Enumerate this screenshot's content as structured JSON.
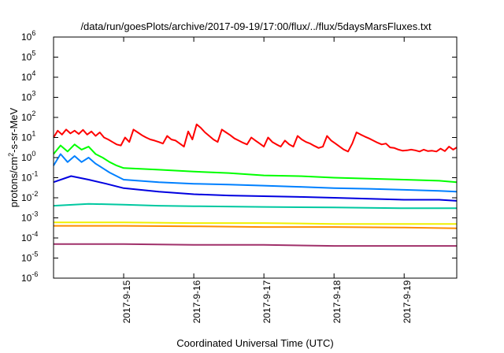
{
  "chart_data": {
    "type": "line",
    "title": "/data/run/goesPlots/archive/2017-09-19/17:00/flux/../flux/5daysMarsFluxes.txt",
    "xlabel": "Coordinated Universal Time (UTC)",
    "ylabel": "protons/cm2-s-sr-MeV",
    "ylabel_main": "protons/cm",
    "ylabel_sup": "2",
    "ylabel_rest": "-s-sr-MeV",
    "yscale": "log",
    "ylim": [
      1e-06,
      1000000.0
    ],
    "xlim": [
      "2017-09-14 00:00",
      "2017-09-19 18:00"
    ],
    "x_ticks": [
      "2017-9-15",
      "2017-9-16",
      "2017-9-17",
      "2017-9-18",
      "2017-9-19"
    ],
    "y_ticks": [
      {
        "base": "10",
        "exp": "-6"
      },
      {
        "base": "10",
        "exp": "-5"
      },
      {
        "base": "10",
        "exp": "-4"
      },
      {
        "base": "10",
        "exp": "-3"
      },
      {
        "base": "10",
        "exp": "-2"
      },
      {
        "base": "10",
        "exp": "-1"
      },
      {
        "base": "10",
        "exp": "0"
      },
      {
        "base": "10",
        "exp": "1"
      },
      {
        "base": "10",
        "exp": "2"
      },
      {
        "base": "10",
        "exp": "3"
      },
      {
        "base": "10",
        "exp": "4"
      },
      {
        "base": "10",
        "exp": "5"
      },
      {
        "base": "10",
        "exp": "6"
      }
    ],
    "grid": false,
    "legend": "none",
    "series": [
      {
        "color": "#ff0000",
        "x": [
          "2017-09-14 00:00",
          "2017-09-14 01:26",
          "2017-09-14 02:53",
          "2017-09-14 04:19",
          "2017-09-14 05:46",
          "2017-09-14 07:12",
          "2017-09-14 08:38",
          "2017-09-14 10:05",
          "2017-09-14 11:31",
          "2017-09-14 12:58",
          "2017-09-14 14:24",
          "2017-09-14 15:50",
          "2017-09-14 17:17",
          "2017-09-14 18:43",
          "2017-09-14 20:10",
          "2017-09-14 21:36",
          "2017-09-14 23:02",
          "2017-09-15 00:29",
          "2017-09-15 01:55",
          "2017-09-15 03:22",
          "2017-09-15 04:48",
          "2017-09-15 06:14",
          "2017-09-15 07:41",
          "2017-09-15 09:07",
          "2017-09-15 10:34",
          "2017-09-15 12:00",
          "2017-09-15 13:26",
          "2017-09-15 14:53",
          "2017-09-15 16:19",
          "2017-09-15 17:46",
          "2017-09-15 19:12",
          "2017-09-15 20:38",
          "2017-09-15 22:05",
          "2017-09-15 23:31",
          "2017-09-16 00:58",
          "2017-09-16 02:24",
          "2017-09-16 03:50",
          "2017-09-16 05:17",
          "2017-09-16 06:43",
          "2017-09-16 08:10",
          "2017-09-16 09:36",
          "2017-09-16 11:02",
          "2017-09-16 12:29",
          "2017-09-16 13:55",
          "2017-09-16 15:22",
          "2017-09-16 16:48",
          "2017-09-16 18:14",
          "2017-09-16 19:41",
          "2017-09-16 21:07",
          "2017-09-16 22:34",
          "2017-09-17 00:00",
          "2017-09-17 01:26",
          "2017-09-17 02:53",
          "2017-09-17 04:19",
          "2017-09-17 05:46",
          "2017-09-17 07:12",
          "2017-09-17 08:38",
          "2017-09-17 10:05",
          "2017-09-17 11:31",
          "2017-09-17 12:58",
          "2017-09-17 14:24",
          "2017-09-17 15:50",
          "2017-09-17 17:17",
          "2017-09-17 18:43",
          "2017-09-17 20:10",
          "2017-09-17 21:36",
          "2017-09-17 23:02",
          "2017-09-18 00:29",
          "2017-09-18 01:55",
          "2017-09-18 03:22",
          "2017-09-18 04:48",
          "2017-09-18 06:14",
          "2017-09-18 07:41",
          "2017-09-18 09:07",
          "2017-09-18 10:34",
          "2017-09-18 12:00",
          "2017-09-18 13:26",
          "2017-09-18 14:53",
          "2017-09-18 16:19",
          "2017-09-18 17:46",
          "2017-09-18 19:12",
          "2017-09-18 20:38",
          "2017-09-18 22:05",
          "2017-09-18 23:31",
          "2017-09-19 00:58",
          "2017-09-19 02:24",
          "2017-09-19 03:50",
          "2017-09-19 05:17",
          "2017-09-19 06:43",
          "2017-09-19 08:10",
          "2017-09-19 09:36",
          "2017-09-19 11:02",
          "2017-09-19 12:29",
          "2017-09-19 13:55",
          "2017-09-19 15:22",
          "2017-09-19 16:48",
          "2017-09-19 18:00"
        ],
        "y": [
          10,
          22,
          14,
          25,
          16,
          22,
          15,
          24,
          14,
          20,
          12,
          18,
          10,
          8,
          6,
          4.5,
          4,
          10,
          6,
          25,
          18,
          13,
          10,
          8,
          7,
          6,
          5,
          12,
          8,
          7,
          5,
          3.5,
          20,
          8,
          45,
          30,
          18,
          12,
          8,
          6,
          25,
          18,
          13,
          9,
          7,
          5.5,
          4.5,
          10,
          7,
          5,
          3.5,
          10,
          6,
          4.5,
          3.5,
          7,
          4.5,
          3.5,
          12,
          8,
          6,
          5,
          3.8,
          3,
          3.5,
          12,
          7,
          5,
          3.5,
          2.5,
          2,
          5,
          18,
          14,
          11,
          9,
          7,
          5.5,
          4.5,
          5,
          3.2,
          3,
          2.5,
          2.2,
          2.3,
          2.5,
          2.3,
          2,
          2.5,
          2.1,
          2.2,
          2,
          2.8,
          2.1,
          3.5,
          2.5,
          3.2
        ]
      },
      {
        "color": "#00ff00",
        "x": [
          "2017-09-14 00:00",
          "2017-09-14 02:24",
          "2017-09-14 04:48",
          "2017-09-14 07:12",
          "2017-09-14 09:36",
          "2017-09-14 12:00",
          "2017-09-14 14:24",
          "2017-09-14 16:48",
          "2017-09-14 19:12",
          "2017-09-14 21:36",
          "2017-09-15 00:00",
          "2017-09-15 12:00",
          "2017-09-16 00:00",
          "2017-09-16 12:00",
          "2017-09-17 00:00",
          "2017-09-17 12:00",
          "2017-09-18 00:00",
          "2017-09-18 12:00",
          "2017-09-19 00:00",
          "2017-09-19 12:00",
          "2017-09-19 18:00"
        ],
        "y": [
          1.5,
          4,
          2,
          4.5,
          2.5,
          3.5,
          1.5,
          1,
          0.6,
          0.4,
          0.3,
          0.25,
          0.2,
          0.17,
          0.13,
          0.12,
          0.1,
          0.09,
          0.08,
          0.07,
          0.06
        ]
      },
      {
        "color": "#0080ff",
        "x": [
          "2017-09-14 00:00",
          "2017-09-14 02:24",
          "2017-09-14 04:48",
          "2017-09-14 07:12",
          "2017-09-14 09:36",
          "2017-09-14 12:00",
          "2017-09-14 14:24",
          "2017-09-14 16:48",
          "2017-09-14 19:12",
          "2017-09-14 21:36",
          "2017-09-15 00:00",
          "2017-09-15 12:00",
          "2017-09-16 00:00",
          "2017-09-16 12:00",
          "2017-09-17 00:00",
          "2017-09-17 12:00",
          "2017-09-18 00:00",
          "2017-09-18 12:00",
          "2017-09-19 00:00",
          "2017-09-19 12:00",
          "2017-09-19 18:00"
        ],
        "y": [
          0.4,
          1.5,
          0.6,
          1.2,
          0.6,
          1,
          0.5,
          0.3,
          0.18,
          0.12,
          0.08,
          0.06,
          0.05,
          0.045,
          0.04,
          0.035,
          0.03,
          0.028,
          0.025,
          0.022,
          0.02
        ]
      },
      {
        "color": "#0000e0",
        "x": [
          "2017-09-14 00:00",
          "2017-09-14 06:00",
          "2017-09-14 12:00",
          "2017-09-14 18:00",
          "2017-09-15 00:00",
          "2017-09-15 12:00",
          "2017-09-16 00:00",
          "2017-09-16 12:00",
          "2017-09-17 00:00",
          "2017-09-17 12:00",
          "2017-09-18 00:00",
          "2017-09-18 12:00",
          "2017-09-19 00:00",
          "2017-09-19 12:00",
          "2017-09-19 18:00"
        ],
        "y": [
          0.06,
          0.12,
          0.08,
          0.05,
          0.03,
          0.02,
          0.015,
          0.013,
          0.012,
          0.011,
          0.01,
          0.009,
          0.008,
          0.008,
          0.007
        ]
      },
      {
        "color": "#00c8a0",
        "x": [
          "2017-09-14 00:00",
          "2017-09-14 12:00",
          "2017-09-15 00:00",
          "2017-09-15 12:00",
          "2017-09-16 00:00",
          "2017-09-17 00:00",
          "2017-09-18 00:00",
          "2017-09-19 00:00",
          "2017-09-19 18:00"
        ],
        "y": [
          0.004,
          0.005,
          0.0045,
          0.004,
          0.0038,
          0.0035,
          0.0033,
          0.003,
          0.003
        ]
      },
      {
        "color": "#ff8c00",
        "x": [
          "2017-09-14 00:00",
          "2017-09-15 00:00",
          "2017-09-16 00:00",
          "2017-09-17 00:00",
          "2017-09-18 00:00",
          "2017-09-19 00:00",
          "2017-09-19 18:00"
        ],
        "y": [
          0.0004,
          0.0004,
          0.00038,
          0.00035,
          0.00035,
          0.00033,
          0.0003
        ]
      },
      {
        "color": "#f0f000",
        "x": [
          "2017-09-14 00:00",
          "2017-09-15 00:00",
          "2017-09-16 00:00",
          "2017-09-17 00:00",
          "2017-09-18 00:00",
          "2017-09-19 00:00",
          "2017-09-19 18:00"
        ],
        "y": [
          0.0006,
          0.0006,
          0.00055,
          0.00055,
          0.0005,
          0.0005,
          0.0005
        ]
      },
      {
        "color": "#a0306a",
        "x": [
          "2017-09-14 00:00",
          "2017-09-15 00:00",
          "2017-09-16 00:00",
          "2017-09-17 00:00",
          "2017-09-18 00:00",
          "2017-09-19 00:00",
          "2017-09-19 18:00"
        ],
        "y": [
          5e-05,
          5e-05,
          4.5e-05,
          4.5e-05,
          4e-05,
          4e-05,
          4e-05
        ]
      }
    ]
  }
}
